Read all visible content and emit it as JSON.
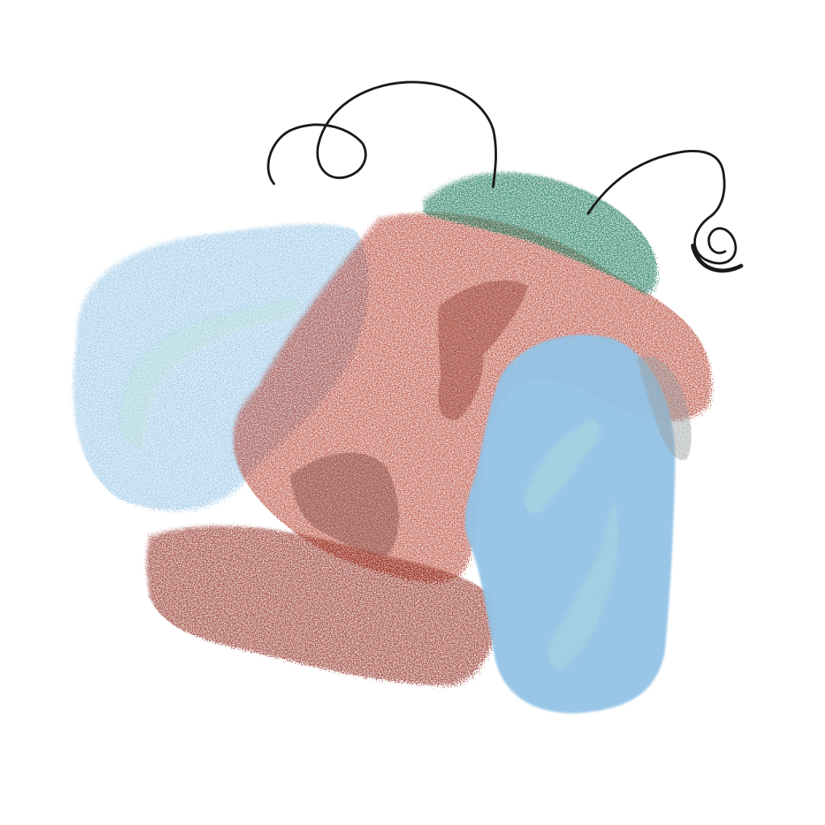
{
  "artwork": {
    "background_color": "#ffffff",
    "palette": {
      "light_blue": "#94c3e6",
      "pale_mint": "#b9ded8",
      "brick_red": "#b4412d",
      "dark_red": "#8e2418",
      "shadow_brown": "#6e3a32",
      "green": "#1e7b5c",
      "gray": "#9a9fa2",
      "ink": "#1a1a1a"
    }
  }
}
